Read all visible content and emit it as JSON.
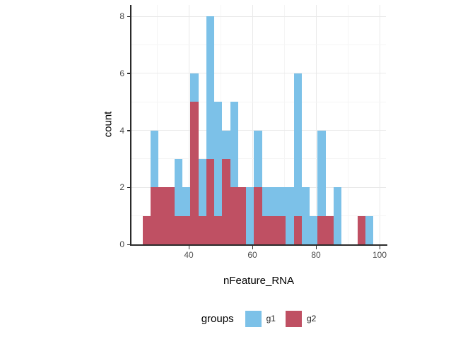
{
  "figure": {
    "background": "#ffffff"
  },
  "colors": {
    "g1_blue": "#7CC1E8",
    "g2_red": "#BF5063",
    "grid_major": "#e9e9e9",
    "grid_minor": "#f5f5f5",
    "axis_line": "#2a2a2a",
    "tick_label": "#4d4d4d"
  },
  "y_axis": {
    "title": "count",
    "tick_labels": [
      "0",
      "2",
      "4",
      "6",
      "8"
    ],
    "major_ticks": [
      0,
      2,
      4,
      6,
      8
    ],
    "minor_gridlines": [
      1,
      3,
      5,
      7
    ]
  },
  "x_axis": {
    "title": "nFeature_RNA",
    "tick_labels": [
      "40",
      "60",
      "80",
      "100"
    ],
    "major_ticks": [
      40,
      60,
      80,
      100
    ],
    "minor_gridlines": [
      30,
      50,
      70,
      90
    ]
  },
  "legend": {
    "title": "groups",
    "entries": [
      {
        "label": "g1",
        "color": "#7CC1E8"
      },
      {
        "label": "g2",
        "color": "#BF5063"
      }
    ]
  },
  "chart_data": {
    "type": "bar",
    "subtype": "stacked-histogram",
    "title": "",
    "xlabel": "nFeature_RNA",
    "ylabel": "count",
    "bin_start": 25.5,
    "bin_width": 2.5,
    "n_bins": 30,
    "xlim": [
      22,
      102
    ],
    "ylim": [
      0,
      8.4
    ],
    "grid": true,
    "legend_position": "bottom",
    "totals": [
      1,
      4,
      2,
      2,
      3,
      2,
      6,
      3,
      8,
      5,
      4,
      5,
      2,
      2,
      4,
      2,
      2,
      2,
      2,
      6,
      2,
      1,
      4,
      1,
      2,
      0,
      0,
      1,
      1,
      0
    ],
    "series": [
      {
        "name": "g2",
        "stack_order": "bottom",
        "color": "#BF5063",
        "values": [
          1,
          2,
          2,
          2,
          1,
          1,
          5,
          1,
          3,
          1,
          3,
          2,
          2,
          0,
          2,
          1,
          1,
          1,
          0,
          1,
          0,
          0,
          1,
          1,
          0,
          0,
          0,
          1,
          0,
          0
        ]
      },
      {
        "name": "g1",
        "stack_order": "top",
        "color": "#7CC1E8",
        "values": [
          0,
          2,
          0,
          0,
          2,
          1,
          1,
          2,
          5,
          4,
          1,
          3,
          0,
          2,
          2,
          1,
          1,
          1,
          2,
          5,
          2,
          1,
          3,
          0,
          2,
          0,
          0,
          0,
          1,
          0
        ]
      }
    ]
  }
}
